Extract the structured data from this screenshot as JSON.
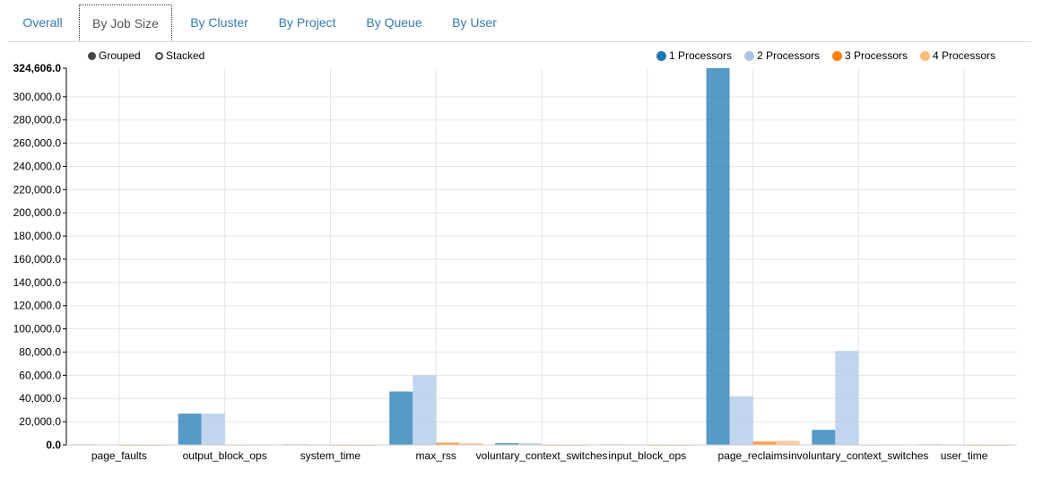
{
  "tabs": [
    {
      "label": "Overall",
      "active": false
    },
    {
      "label": "By Job Size",
      "active": true
    },
    {
      "label": "By Cluster",
      "active": false
    },
    {
      "label": "By Project",
      "active": false
    },
    {
      "label": "By Queue",
      "active": false
    },
    {
      "label": "By User",
      "active": false
    }
  ],
  "controls": {
    "grouped_label": "Grouped",
    "stacked_label": "Stacked",
    "selected": "grouped"
  },
  "chart_data": {
    "type": "bar",
    "mode": "grouped",
    "categories": [
      "page_faults",
      "output_block_ops",
      "system_time",
      "max_rss",
      "voluntary_context_switches",
      "input_block_ops",
      "page_reclaims",
      "involuntary_context_switches",
      "user_time"
    ],
    "series": [
      {
        "name": "1 Processors",
        "color": "#1f77b4",
        "values": [
          500,
          27000,
          500,
          46000,
          1500,
          500,
          324606,
          13000,
          500
        ]
      },
      {
        "name": "2 Processors",
        "color": "#aec7e8",
        "values": [
          400,
          27000,
          300,
          60000,
          1500,
          300,
          42000,
          81000,
          300
        ]
      },
      {
        "name": "3 Processors",
        "color": "#ff7f0e",
        "values": [
          200,
          300,
          200,
          2000,
          200,
          200,
          3000,
          300,
          200
        ]
      },
      {
        "name": "4 Processors",
        "color": "#ffbb78",
        "values": [
          100,
          300,
          100,
          1500,
          100,
          100,
          3500,
          300,
          100
        ]
      }
    ],
    "y_max_label": "324,606.0",
    "ylim": [
      0,
      324606
    ],
    "y_ticks": [
      0,
      20000,
      40000,
      60000,
      80000,
      100000,
      120000,
      140000,
      160000,
      180000,
      200000,
      220000,
      240000,
      260000,
      280000,
      300000
    ],
    "grid": true,
    "legend_position": "top-right"
  }
}
